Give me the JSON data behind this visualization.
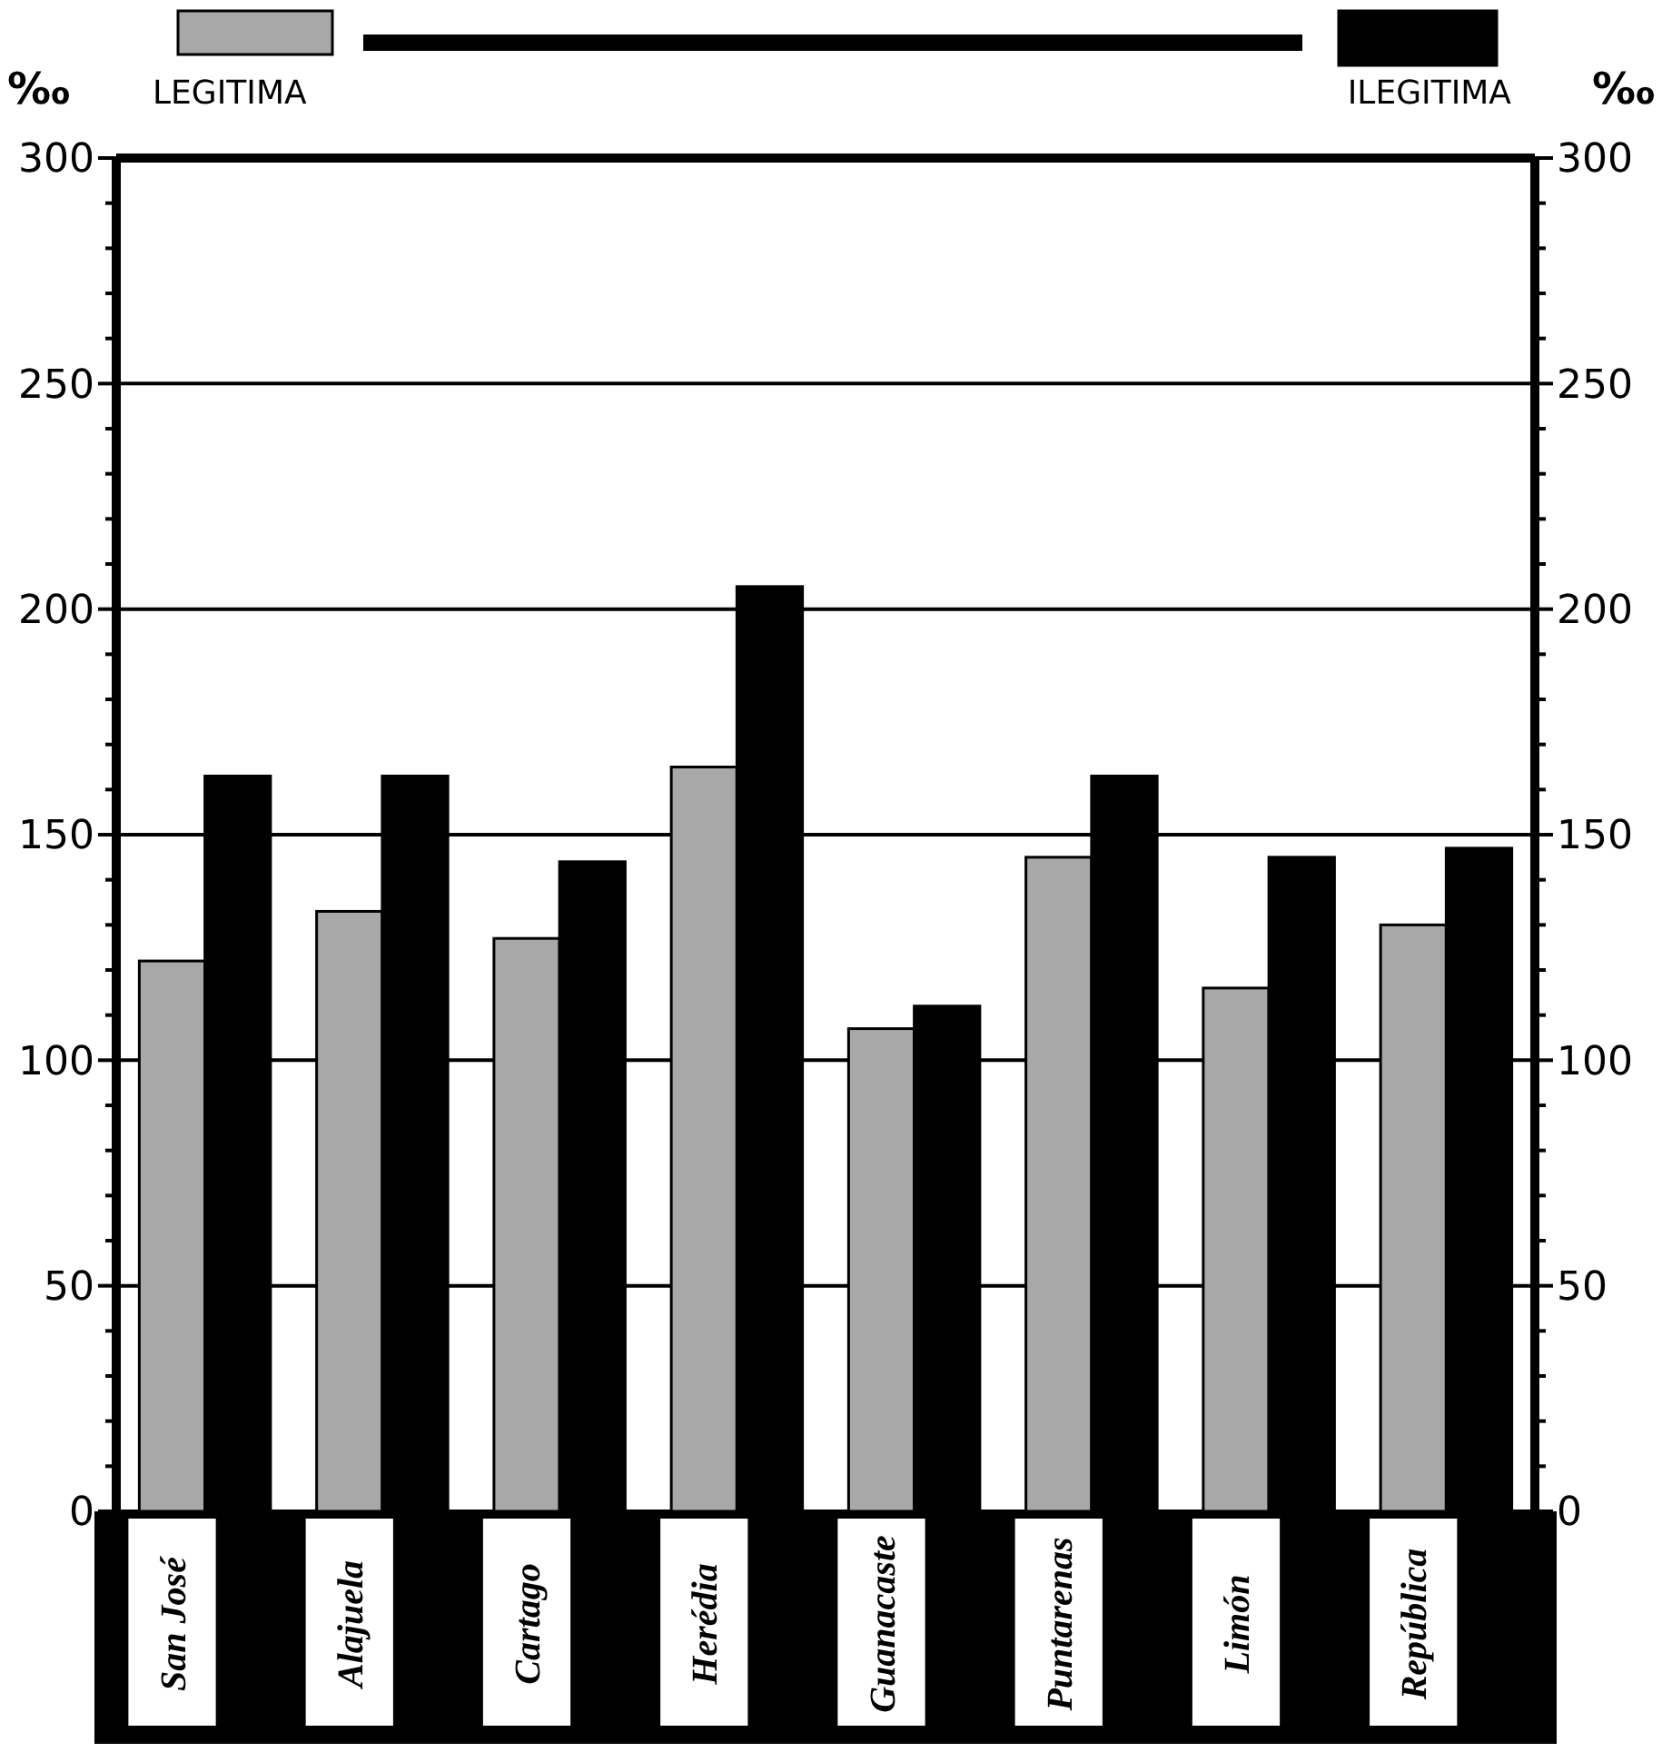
{
  "chart_data": {
    "type": "bar",
    "ylabel": "‰",
    "y2label": "‰",
    "categories": [
      "San José",
      "Alajuela",
      "Cartago",
      "Herédia",
      "Guanacaste",
      "Puntarenas",
      "Limón",
      "República"
    ],
    "series": [
      {
        "name": "LEGITIMA",
        "color": "#a8a8a8",
        "values": [
          122,
          133,
          127,
          165,
          107,
          145,
          116,
          130
        ]
      },
      {
        "name": "ILEGITIMA",
        "color": "#000000",
        "values": [
          163,
          163,
          144,
          205,
          112,
          163,
          145,
          147
        ]
      }
    ],
    "ylim": [
      0,
      300
    ],
    "yticks": [
      0,
      {
        "value": 10,
        "label": null
      },
      {
        "value": 20,
        "label": null
      },
      {
        "value": 30,
        "label": null
      },
      {
        "value": 40,
        "label": null
      },
      50,
      {
        "value": 60,
        "label": null
      },
      {
        "value": 70,
        "label": null
      },
      {
        "value": 80,
        "label": null
      },
      {
        "value": 90,
        "label": null
      },
      100,
      {
        "value": 110,
        "label": null
      },
      {
        "value": 120,
        "label": null
      },
      {
        "value": 130,
        "label": null
      },
      {
        "value": 140,
        "label": null
      },
      150,
      {
        "value": 160,
        "label": null
      },
      {
        "value": 170,
        "label": null
      },
      {
        "value": 180,
        "label": null
      },
      {
        "value": 190,
        "label": null
      },
      200,
      {
        "value": 210,
        "label": null
      },
      {
        "value": 220,
        "label": null
      },
      {
        "value": 230,
        "label": null
      },
      {
        "value": 240,
        "label": null
      },
      250,
      {
        "value": 260,
        "label": null
      },
      {
        "value": 270,
        "label": null
      },
      {
        "value": 280,
        "label": null
      },
      {
        "value": 290,
        "label": null
      },
      300
    ],
    "y2lim": [
      0,
      300
    ],
    "y2ticks": [
      0,
      {
        "value": 10,
        "label": null
      },
      {
        "value": 20,
        "label": null
      },
      {
        "value": 30,
        "label": null
      },
      {
        "value": 40,
        "label": null
      },
      50,
      {
        "value": 60,
        "label": null
      },
      {
        "value": 70,
        "label": null
      },
      {
        "value": 80,
        "label": null
      },
      {
        "value": 90,
        "label": null
      },
      100,
      {
        "value": 110,
        "label": null
      },
      {
        "value": 120,
        "label": null
      },
      {
        "value": 130,
        "label": null
      },
      {
        "value": 140,
        "label": null
      },
      150,
      {
        "value": 160,
        "label": null
      },
      {
        "value": 170,
        "label": null
      },
      {
        "value": 180,
        "label": null
      },
      {
        "value": 190,
        "label": null
      },
      200,
      {
        "value": 210,
        "label": null
      },
      {
        "value": 220,
        "label": null
      },
      {
        "value": 230,
        "label": null
      },
      {
        "value": 240,
        "label": null
      },
      250,
      {
        "value": 260,
        "label": null
      },
      {
        "value": 270,
        "label": null
      },
      {
        "value": 280,
        "label": null
      },
      {
        "value": 290,
        "label": null
      },
      300
    ],
    "grid": "y",
    "legend": "top"
  }
}
